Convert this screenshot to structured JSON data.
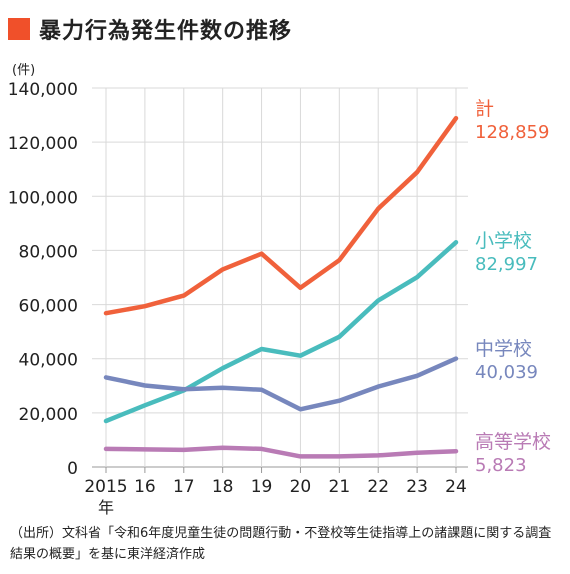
{
  "title": "暴力行為発生件数の推移",
  "unit_label": "(件)",
  "source_note": "（出所）文科省「令和6年度児童生徒の問題行動・不登校等生徒指導上の諸課題に関する調査結果の概要」を基に東洋経済作成",
  "colors": {
    "title_mark": "#f0502a",
    "total": "#f0613b",
    "elementary": "#49bcbd",
    "junior_high": "#7787bd",
    "high_school": "#b97bb5",
    "grid": "#d9d9d9"
  },
  "chart_data": {
    "type": "line",
    "x": [
      "2015",
      "16",
      "17",
      "18",
      "19",
      "20",
      "21",
      "22",
      "23",
      "24"
    ],
    "x_first_suffix": "年",
    "ylim": [
      0,
      140000
    ],
    "yticks": [
      "0",
      "20,000",
      "40,000",
      "60,000",
      "80,000",
      "100,000",
      "120,000",
      "140,000"
    ],
    "ytick_values": [
      0,
      20000,
      40000,
      60000,
      80000,
      100000,
      120000,
      140000
    ],
    "grid": true,
    "series": [
      {
        "key": "total",
        "name": "計",
        "end_label": "128,859",
        "values": [
          56800,
          59400,
          63300,
          73000,
          78800,
          66200,
          76400,
          95400,
          108900,
          128859
        ]
      },
      {
        "key": "elementary",
        "name": "小学校",
        "end_label": "82,997",
        "values": [
          17000,
          22800,
          28300,
          36500,
          43600,
          41100,
          48100,
          61500,
          70100,
          82997
        ]
      },
      {
        "key": "junior_high",
        "name": "中学校",
        "end_label": "40,039",
        "values": [
          33100,
          30100,
          28700,
          29300,
          28500,
          21300,
          24500,
          29700,
          33700,
          40039
        ]
      },
      {
        "key": "high_school",
        "name": "高等学校",
        "end_label": "5,823",
        "values": [
          6700,
          6500,
          6300,
          7100,
          6700,
          3900,
          3900,
          4300,
          5300,
          5823
        ]
      }
    ]
  }
}
